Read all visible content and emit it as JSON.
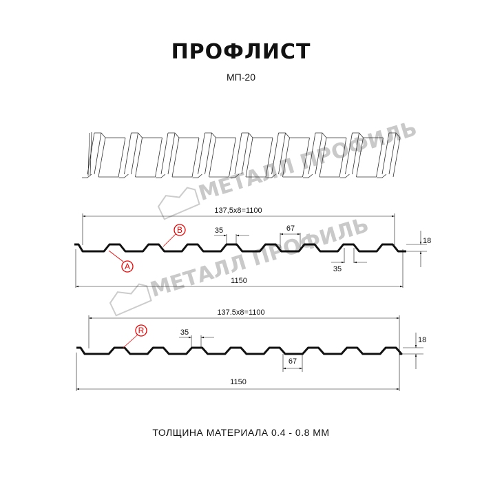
{
  "header": {
    "title": "ПРОФЛИСТ",
    "subtitle": "МП-20"
  },
  "watermark": {
    "text": "МЕТАЛЛ ПРОФИЛЬ"
  },
  "profile_1": {
    "pitch_label": "137,5x8=1100",
    "width_label": "1150",
    "rib_top_label": "35",
    "rib_bottom_label": "35",
    "gap_label": "67",
    "height_label": "18",
    "markers": [
      "B",
      "A"
    ]
  },
  "profile_2": {
    "pitch_label": "137.5x8=1100",
    "width_label": "1150",
    "rib_top_label": "35",
    "gap_label": "67",
    "height_label": "18",
    "markers": [
      "R"
    ]
  },
  "footer": {
    "thickness": "ТОЛЩИНА МАТЕРИАЛА 0.4 - 0.8 ММ"
  },
  "colors": {
    "line": "#111111",
    "marker": "#e00000",
    "watermark": "#c9c9c9"
  }
}
